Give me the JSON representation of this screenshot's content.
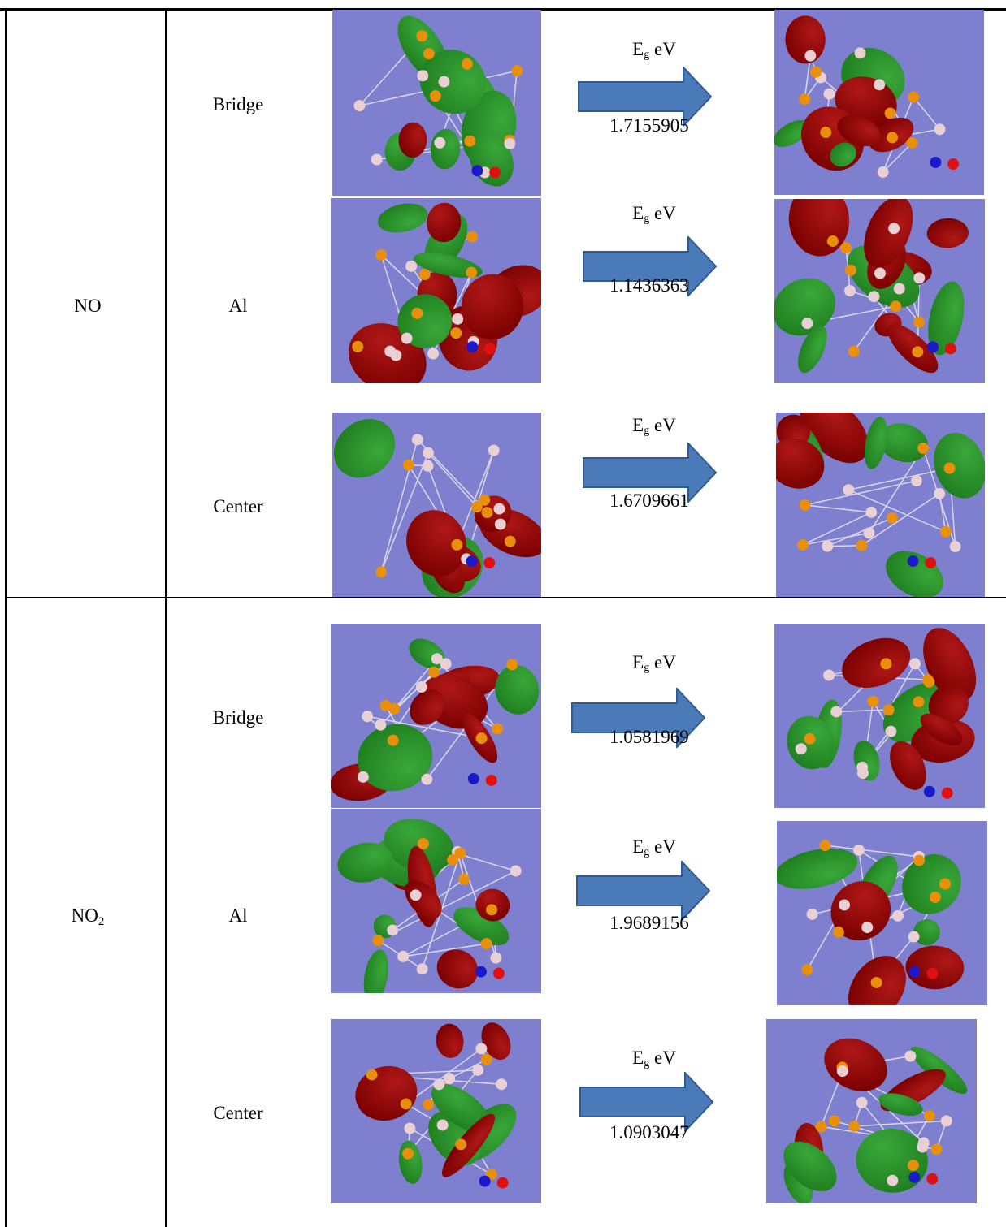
{
  "colors": {
    "background": "#7f7fcf",
    "lobe_positive": "#7a0000",
    "lobe_negative": "#1f7f1f",
    "atom_orange": "#e8900c",
    "atom_pink": "#e8d0d4",
    "atom_blue": "#1a1acc",
    "atom_red": "#e01010",
    "arrow_fill": "#4a7ab8",
    "arrow_edge": "#2f5b90"
  },
  "groups": [
    {
      "molecule": "NO",
      "molecule_sub": "",
      "rows": [
        {
          "site": "Bridge",
          "eg_label": "E",
          "eg_sub": "g",
          "eg_unit": " eV",
          "gap": "1.7155905"
        },
        {
          "site": "Al",
          "eg_label": "E",
          "eg_sub": "g",
          "eg_unit": " eV",
          "gap": "1.1436363"
        },
        {
          "site": "Center",
          "eg_label": "E",
          "eg_sub": "g",
          "eg_unit": " eV",
          "gap": "1.6709661"
        }
      ]
    },
    {
      "molecule": "NO",
      "molecule_sub": "2",
      "rows": [
        {
          "site": "Bridge",
          "eg_label": "E",
          "eg_sub": "g",
          "eg_unit": " eV",
          "gap": "1.0581969"
        },
        {
          "site": "Al",
          "eg_label": "E",
          "eg_sub": "g",
          "eg_unit": " eV",
          "gap": "1.9689156"
        },
        {
          "site": "Center",
          "eg_label": "E",
          "eg_sub": "g",
          "eg_unit": " eV",
          "gap": "1.0903047"
        }
      ]
    }
  ]
}
